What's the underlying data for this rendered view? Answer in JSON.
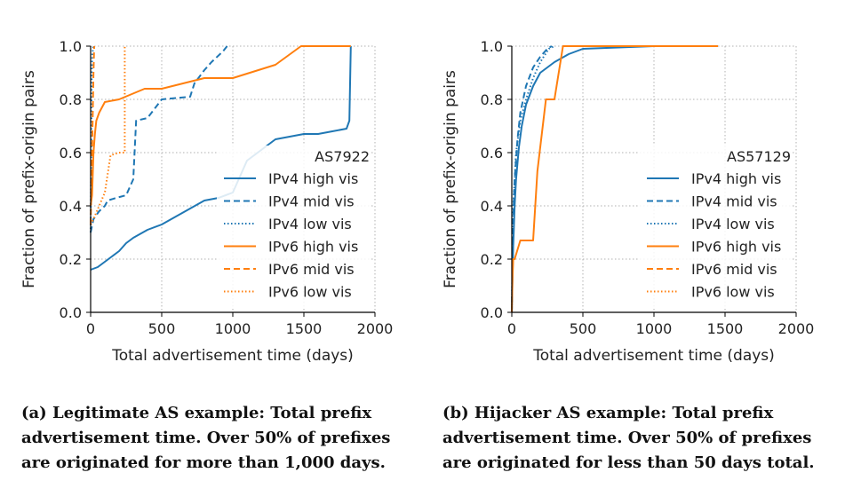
{
  "chart_data": [
    {
      "type": "line",
      "panel": "a",
      "title": "AS7922",
      "xlabel": "Total advertisement time (days)",
      "ylabel": "Fraction of prefix-origin pairs",
      "xlim": [
        0,
        2000
      ],
      "ylim": [
        0,
        1.0
      ],
      "xticks": [
        "0",
        "500",
        "1000",
        "1500",
        "2000"
      ],
      "yticks": [
        "0.0",
        "0.2",
        "0.4",
        "0.6",
        "0.8",
        "1.0"
      ],
      "grid": true,
      "legend_position": "lower-right",
      "caption": "(a) Legitimate AS example: Total prefix advertisement time. Over 50% of prefixes are originated for more than 1,000 days.",
      "series": [
        {
          "name": "IPv4 high vis",
          "color": "#1f77b4",
          "style": "solid",
          "x": [
            0,
            50,
            100,
            150,
            200,
            250,
            300,
            400,
            500,
            600,
            700,
            800,
            900,
            1000,
            1100,
            1200,
            1300,
            1400,
            1500,
            1600,
            1700,
            1800,
            1820,
            1830
          ],
          "y": [
            0.16,
            0.17,
            0.19,
            0.21,
            0.23,
            0.26,
            0.28,
            0.31,
            0.33,
            0.36,
            0.39,
            0.42,
            0.43,
            0.45,
            0.57,
            0.61,
            0.65,
            0.66,
            0.67,
            0.67,
            0.68,
            0.69,
            0.72,
            1.0
          ]
        },
        {
          "name": "IPv4 mid vis",
          "color": "#1f77b4",
          "style": "dashed",
          "x": [
            0,
            20,
            60,
            100,
            120,
            180,
            250,
            300,
            320,
            400,
            500,
            700,
            730,
            800,
            850,
            930,
            960
          ],
          "y": [
            0.3,
            0.35,
            0.38,
            0.4,
            0.42,
            0.43,
            0.44,
            0.5,
            0.72,
            0.73,
            0.8,
            0.81,
            0.86,
            0.91,
            0.94,
            0.98,
            1.0
          ]
        },
        {
          "name": "IPv4 low vis",
          "color": "#1f77b4",
          "style": "dotted",
          "x": [
            0,
            8,
            12,
            20,
            30
          ],
          "y": [
            0.3,
            0.9,
            0.97,
            1.0,
            1.0
          ]
        },
        {
          "name": "IPv6 high vis",
          "color": "#ff7f0e",
          "style": "solid",
          "x": [
            0,
            10,
            20,
            30,
            40,
            60,
            80,
            100,
            200,
            380,
            500,
            800,
            1000,
            1300,
            1480,
            1800,
            1830
          ],
          "y": [
            0.4,
            0.44,
            0.6,
            0.67,
            0.72,
            0.75,
            0.77,
            0.79,
            0.8,
            0.84,
            0.84,
            0.88,
            0.88,
            0.93,
            1.0,
            1.0,
            1.0
          ]
        },
        {
          "name": "IPv6 mid vis",
          "color": "#ff7f0e",
          "style": "dashed",
          "x": [
            0,
            10,
            20,
            25
          ],
          "y": [
            0.33,
            0.6,
            0.9,
            1.0
          ]
        },
        {
          "name": "IPv6 low vis",
          "color": "#ff7f0e",
          "style": "dotted",
          "x": [
            0,
            20,
            60,
            100,
            140,
            200,
            230,
            240,
            240
          ],
          "y": [
            0.33,
            0.35,
            0.4,
            0.45,
            0.59,
            0.6,
            0.6,
            0.6,
            1.0
          ]
        }
      ]
    },
    {
      "type": "line",
      "panel": "b",
      "title": "AS57129",
      "xlabel": "Total advertisement time (days)",
      "ylabel": "Fraction of prefix-origin pairs",
      "xlim": [
        0,
        2000
      ],
      "ylim": [
        0,
        1.0
      ],
      "xticks": [
        "0",
        "500",
        "1000",
        "1500",
        "2000"
      ],
      "yticks": [
        "0.0",
        "0.2",
        "0.4",
        "0.6",
        "0.8",
        "1.0"
      ],
      "grid": true,
      "legend_position": "lower-right",
      "caption": "(b) Hijacker AS example: Total prefix advertisement time. Over 50% of prefixes are originated for less than 50 days total.",
      "series": [
        {
          "name": "IPv4 high vis",
          "color": "#1f77b4",
          "style": "solid",
          "x": [
            0,
            10,
            20,
            30,
            50,
            70,
            100,
            150,
            200,
            300,
            400,
            500,
            1000,
            1450
          ],
          "y": [
            0.0,
            0.25,
            0.4,
            0.5,
            0.62,
            0.7,
            0.78,
            0.85,
            0.9,
            0.94,
            0.97,
            0.99,
            1.0,
            1.0
          ]
        },
        {
          "name": "IPv4 mid vis",
          "color": "#1f77b4",
          "style": "dashed",
          "x": [
            0,
            10,
            20,
            40,
            60,
            100,
            150,
            200,
            250,
            280
          ],
          "y": [
            0.0,
            0.35,
            0.5,
            0.65,
            0.75,
            0.85,
            0.92,
            0.96,
            0.99,
            1.0
          ]
        },
        {
          "name": "IPv4 low vis",
          "color": "#1f77b4",
          "style": "dotted",
          "x": [
            0,
            10,
            30,
            60,
            100,
            150,
            200,
            260,
            300
          ],
          "y": [
            0.0,
            0.4,
            0.6,
            0.72,
            0.8,
            0.88,
            0.94,
            0.99,
            1.0
          ]
        },
        {
          "name": "IPv6 high vis",
          "color": "#ff7f0e",
          "style": "solid",
          "x": [
            0,
            5,
            10,
            20,
            60,
            100,
            150,
            180,
            240,
            300,
            360,
            380,
            1450
          ],
          "y": [
            0.0,
            0.13,
            0.2,
            0.2,
            0.27,
            0.27,
            0.27,
            0.53,
            0.8,
            0.8,
            1.0,
            1.0,
            1.0
          ]
        },
        {
          "name": "IPv6 mid vis",
          "color": "#ff7f0e",
          "style": "dashed",
          "x": [
            0,
            0
          ],
          "y": [
            0.0,
            0.0
          ]
        },
        {
          "name": "IPv6 low vis",
          "color": "#ff7f0e",
          "style": "dotted",
          "x": [
            0,
            0
          ],
          "y": [
            0.0,
            0.0
          ]
        }
      ]
    }
  ]
}
